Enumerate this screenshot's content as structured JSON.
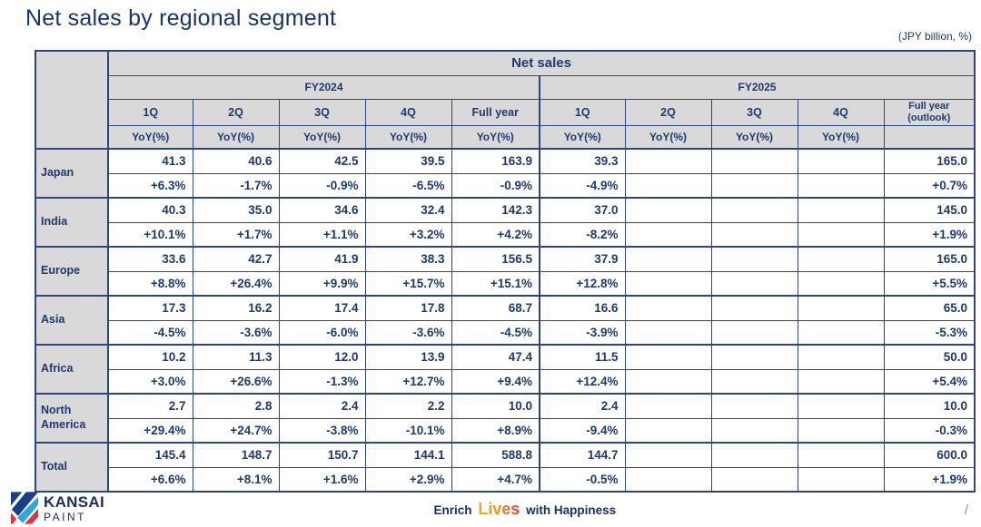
{
  "title": "Net sales by regional segment",
  "unit_note": "(JPY billion, %)",
  "table": {
    "main_header": "Net sales",
    "yoy_label": "YoY(%)",
    "groups": [
      {
        "label": "FY2024",
        "quarters": [
          "1Q",
          "2Q",
          "3Q",
          "4Q",
          "Full year"
        ]
      },
      {
        "label": "FY2025",
        "quarters": [
          "1Q",
          "2Q",
          "3Q",
          "4Q",
          "Full year\n(outlook)"
        ]
      }
    ],
    "rows": [
      {
        "region": "Japan",
        "sales": [
          "41.3",
          "40.6",
          "42.5",
          "39.5",
          "163.9",
          "39.3",
          "",
          "",
          "",
          "165.0"
        ],
        "yoy": [
          "+6.3%",
          "-1.7%",
          "-0.9%",
          "-6.5%",
          "-0.9%",
          "-4.9%",
          "",
          "",
          "",
          "+0.7%"
        ]
      },
      {
        "region": "India",
        "sales": [
          "40.3",
          "35.0",
          "34.6",
          "32.4",
          "142.3",
          "37.0",
          "",
          "",
          "",
          "145.0"
        ],
        "yoy": [
          "+10.1%",
          "+1.7%",
          "+1.1%",
          "+3.2%",
          "+4.2%",
          "-8.2%",
          "",
          "",
          "",
          "+1.9%"
        ]
      },
      {
        "region": "Europe",
        "sales": [
          "33.6",
          "42.7",
          "41.9",
          "38.3",
          "156.5",
          "37.9",
          "",
          "",
          "",
          "165.0"
        ],
        "yoy": [
          "+8.8%",
          "+26.4%",
          "+9.9%",
          "+15.7%",
          "+15.1%",
          "+12.8%",
          "",
          "",
          "",
          "+5.5%"
        ]
      },
      {
        "region": "Asia",
        "sales": [
          "17.3",
          "16.2",
          "17.4",
          "17.8",
          "68.7",
          "16.6",
          "",
          "",
          "",
          "65.0"
        ],
        "yoy": [
          "-4.5%",
          "-3.6%",
          "-6.0%",
          "-3.6%",
          "-4.5%",
          "-3.9%",
          "",
          "",
          "",
          "-5.3%"
        ]
      },
      {
        "region": "Africa",
        "sales": [
          "10.2",
          "11.3",
          "12.0",
          "13.9",
          "47.4",
          "11.5",
          "",
          "",
          "",
          "50.0"
        ],
        "yoy": [
          "+3.0%",
          "+26.6%",
          "-1.3%",
          "+12.7%",
          "+9.4%",
          "+12.4%",
          "",
          "",
          "",
          "+5.4%"
        ]
      },
      {
        "region": "North America",
        "sales": [
          "2.7",
          "2.8",
          "2.4",
          "2.2",
          "10.0",
          "2.4",
          "",
          "",
          "",
          "10.0"
        ],
        "yoy": [
          "+29.4%",
          "+24.7%",
          "-3.8%",
          "-10.1%",
          "+8.9%",
          "-9.4%",
          "",
          "",
          "",
          "-0.3%"
        ]
      },
      {
        "region": "Total",
        "sales": [
          "145.4",
          "148.7",
          "150.7",
          "144.1",
          "588.8",
          "144.7",
          "",
          "",
          "",
          "600.0"
        ],
        "yoy": [
          "+6.6%",
          "+8.1%",
          "+1.6%",
          "+2.9%",
          "+4.7%",
          "-0.5%",
          "",
          "",
          "",
          "+1.9%"
        ]
      }
    ]
  },
  "footer": {
    "logo_name": "KANSAI",
    "logo_sub": "PAINT",
    "tagline_part1": "Enrich",
    "tagline_highlight": "Lives",
    "tagline_part2": "with Happiness",
    "page_slash": "/"
  },
  "colors": {
    "navy_text": "#1d3a70",
    "table_border": "#2b4687",
    "header_bg": "#d9d9d9",
    "tagline_orange": "#f6b019",
    "tagline_red": "#e22b2b",
    "logo_blue": "#173f8c",
    "logo_cyan": "#29a9e0",
    "logo_red": "#e0333f"
  }
}
